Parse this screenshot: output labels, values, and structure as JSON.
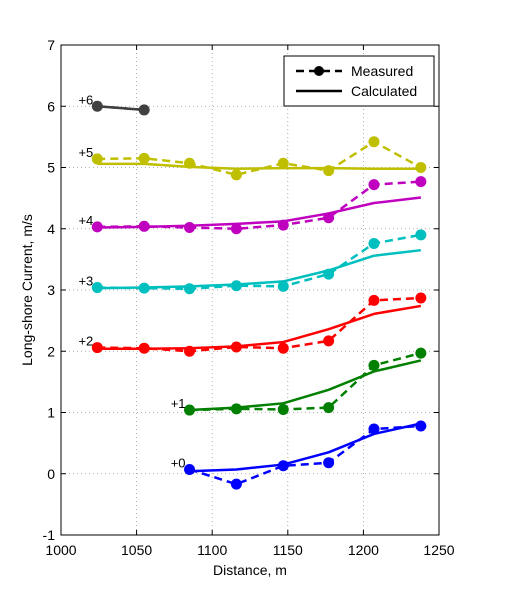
{
  "chart_data": {
    "type": "line",
    "title": "",
    "xlabel": "Distance, m",
    "ylabel": "Long-shore Current, m/s",
    "xlim": [
      1000,
      1250
    ],
    "ylim": [
      -1,
      7
    ],
    "xticks": [
      1000,
      1050,
      1100,
      1150,
      1200,
      1250
    ],
    "yticks": [
      -1,
      0,
      1,
      2,
      3,
      4,
      5,
      6,
      7
    ],
    "grid": true,
    "legend": {
      "position": "top-right",
      "entries": [
        {
          "label": "Measured",
          "style": "dashed-marker"
        },
        {
          "label": "Calculated",
          "style": "solid"
        }
      ]
    },
    "series": [
      {
        "label": "+0",
        "color": "#0000ff",
        "measured": {
          "x": [
            1085,
            1116,
            1147,
            1177,
            1207,
            1238
          ],
          "y": [
            0.07,
            -0.17,
            0.13,
            0.18,
            0.73,
            0.78
          ]
        },
        "calculated": {
          "x": [
            1085,
            1116,
            1147,
            1177,
            1207,
            1238
          ],
          "y": [
            0.04,
            0.07,
            0.15,
            0.35,
            0.65,
            0.82
          ]
        }
      },
      {
        "label": "+1",
        "color": "#007f00",
        "measured": {
          "x": [
            1085,
            1116,
            1147,
            1177,
            1207,
            1238
          ],
          "y": [
            1.04,
            1.06,
            1.05,
            1.08,
            1.77,
            1.97
          ]
        },
        "calculated": {
          "x": [
            1085,
            1116,
            1147,
            1177,
            1207,
            1238
          ],
          "y": [
            1.04,
            1.08,
            1.15,
            1.37,
            1.67,
            1.85
          ]
        }
      },
      {
        "label": "+2",
        "color": "#ff0000",
        "measured": {
          "x": [
            1024,
            1055,
            1085,
            1116,
            1147,
            1177,
            1207,
            1238
          ],
          "y": [
            2.06,
            2.05,
            2.0,
            2.07,
            2.05,
            2.17,
            2.83,
            2.87
          ]
        },
        "calculated": {
          "x": [
            1024,
            1055,
            1085,
            1116,
            1147,
            1177,
            1207,
            1238
          ],
          "y": [
            2.04,
            2.04,
            2.05,
            2.08,
            2.15,
            2.36,
            2.61,
            2.74
          ]
        }
      },
      {
        "label": "+3",
        "color": "#00bfbf",
        "measured": {
          "x": [
            1024,
            1055,
            1085,
            1116,
            1147,
            1177,
            1207,
            1238
          ],
          "y": [
            3.04,
            3.03,
            3.02,
            3.07,
            3.06,
            3.26,
            3.76,
            3.9
          ]
        },
        "calculated": {
          "x": [
            1024,
            1055,
            1085,
            1116,
            1147,
            1177,
            1207,
            1238
          ],
          "y": [
            3.03,
            3.04,
            3.06,
            3.09,
            3.14,
            3.32,
            3.56,
            3.65
          ]
        }
      },
      {
        "label": "+4",
        "color": "#bf00bf",
        "measured": {
          "x": [
            1024,
            1055,
            1085,
            1116,
            1147,
            1177,
            1207,
            1238
          ],
          "y": [
            4.03,
            4.04,
            4.02,
            4.0,
            4.06,
            4.18,
            4.72,
            4.77
          ]
        },
        "calculated": {
          "x": [
            1024,
            1055,
            1085,
            1116,
            1147,
            1177,
            1207,
            1238
          ],
          "y": [
            4.02,
            4.03,
            4.05,
            4.08,
            4.12,
            4.25,
            4.42,
            4.51
          ]
        }
      },
      {
        "label": "+5",
        "color": "#bfbf00",
        "measured": {
          "x": [
            1024,
            1055,
            1085,
            1116,
            1147,
            1177,
            1207,
            1238
          ],
          "y": [
            5.14,
            5.15,
            5.07,
            4.88,
            5.07,
            4.95,
            5.42,
            5.0
          ]
        },
        "calculated": {
          "x": [
            1024,
            1055,
            1085,
            1116,
            1147,
            1177,
            1207,
            1238
          ],
          "y": [
            5.06,
            5.06,
            5.01,
            4.98,
            4.99,
            4.99,
            4.98,
            4.98
          ]
        }
      },
      {
        "label": "+6",
        "color": "#404040",
        "measured": {
          "x": [
            1024,
            1055
          ],
          "y": [
            6.0,
            5.94
          ]
        },
        "calculated": {
          "x": [
            1024,
            1055
          ],
          "y": [
            6.0,
            5.94
          ]
        }
      }
    ]
  }
}
